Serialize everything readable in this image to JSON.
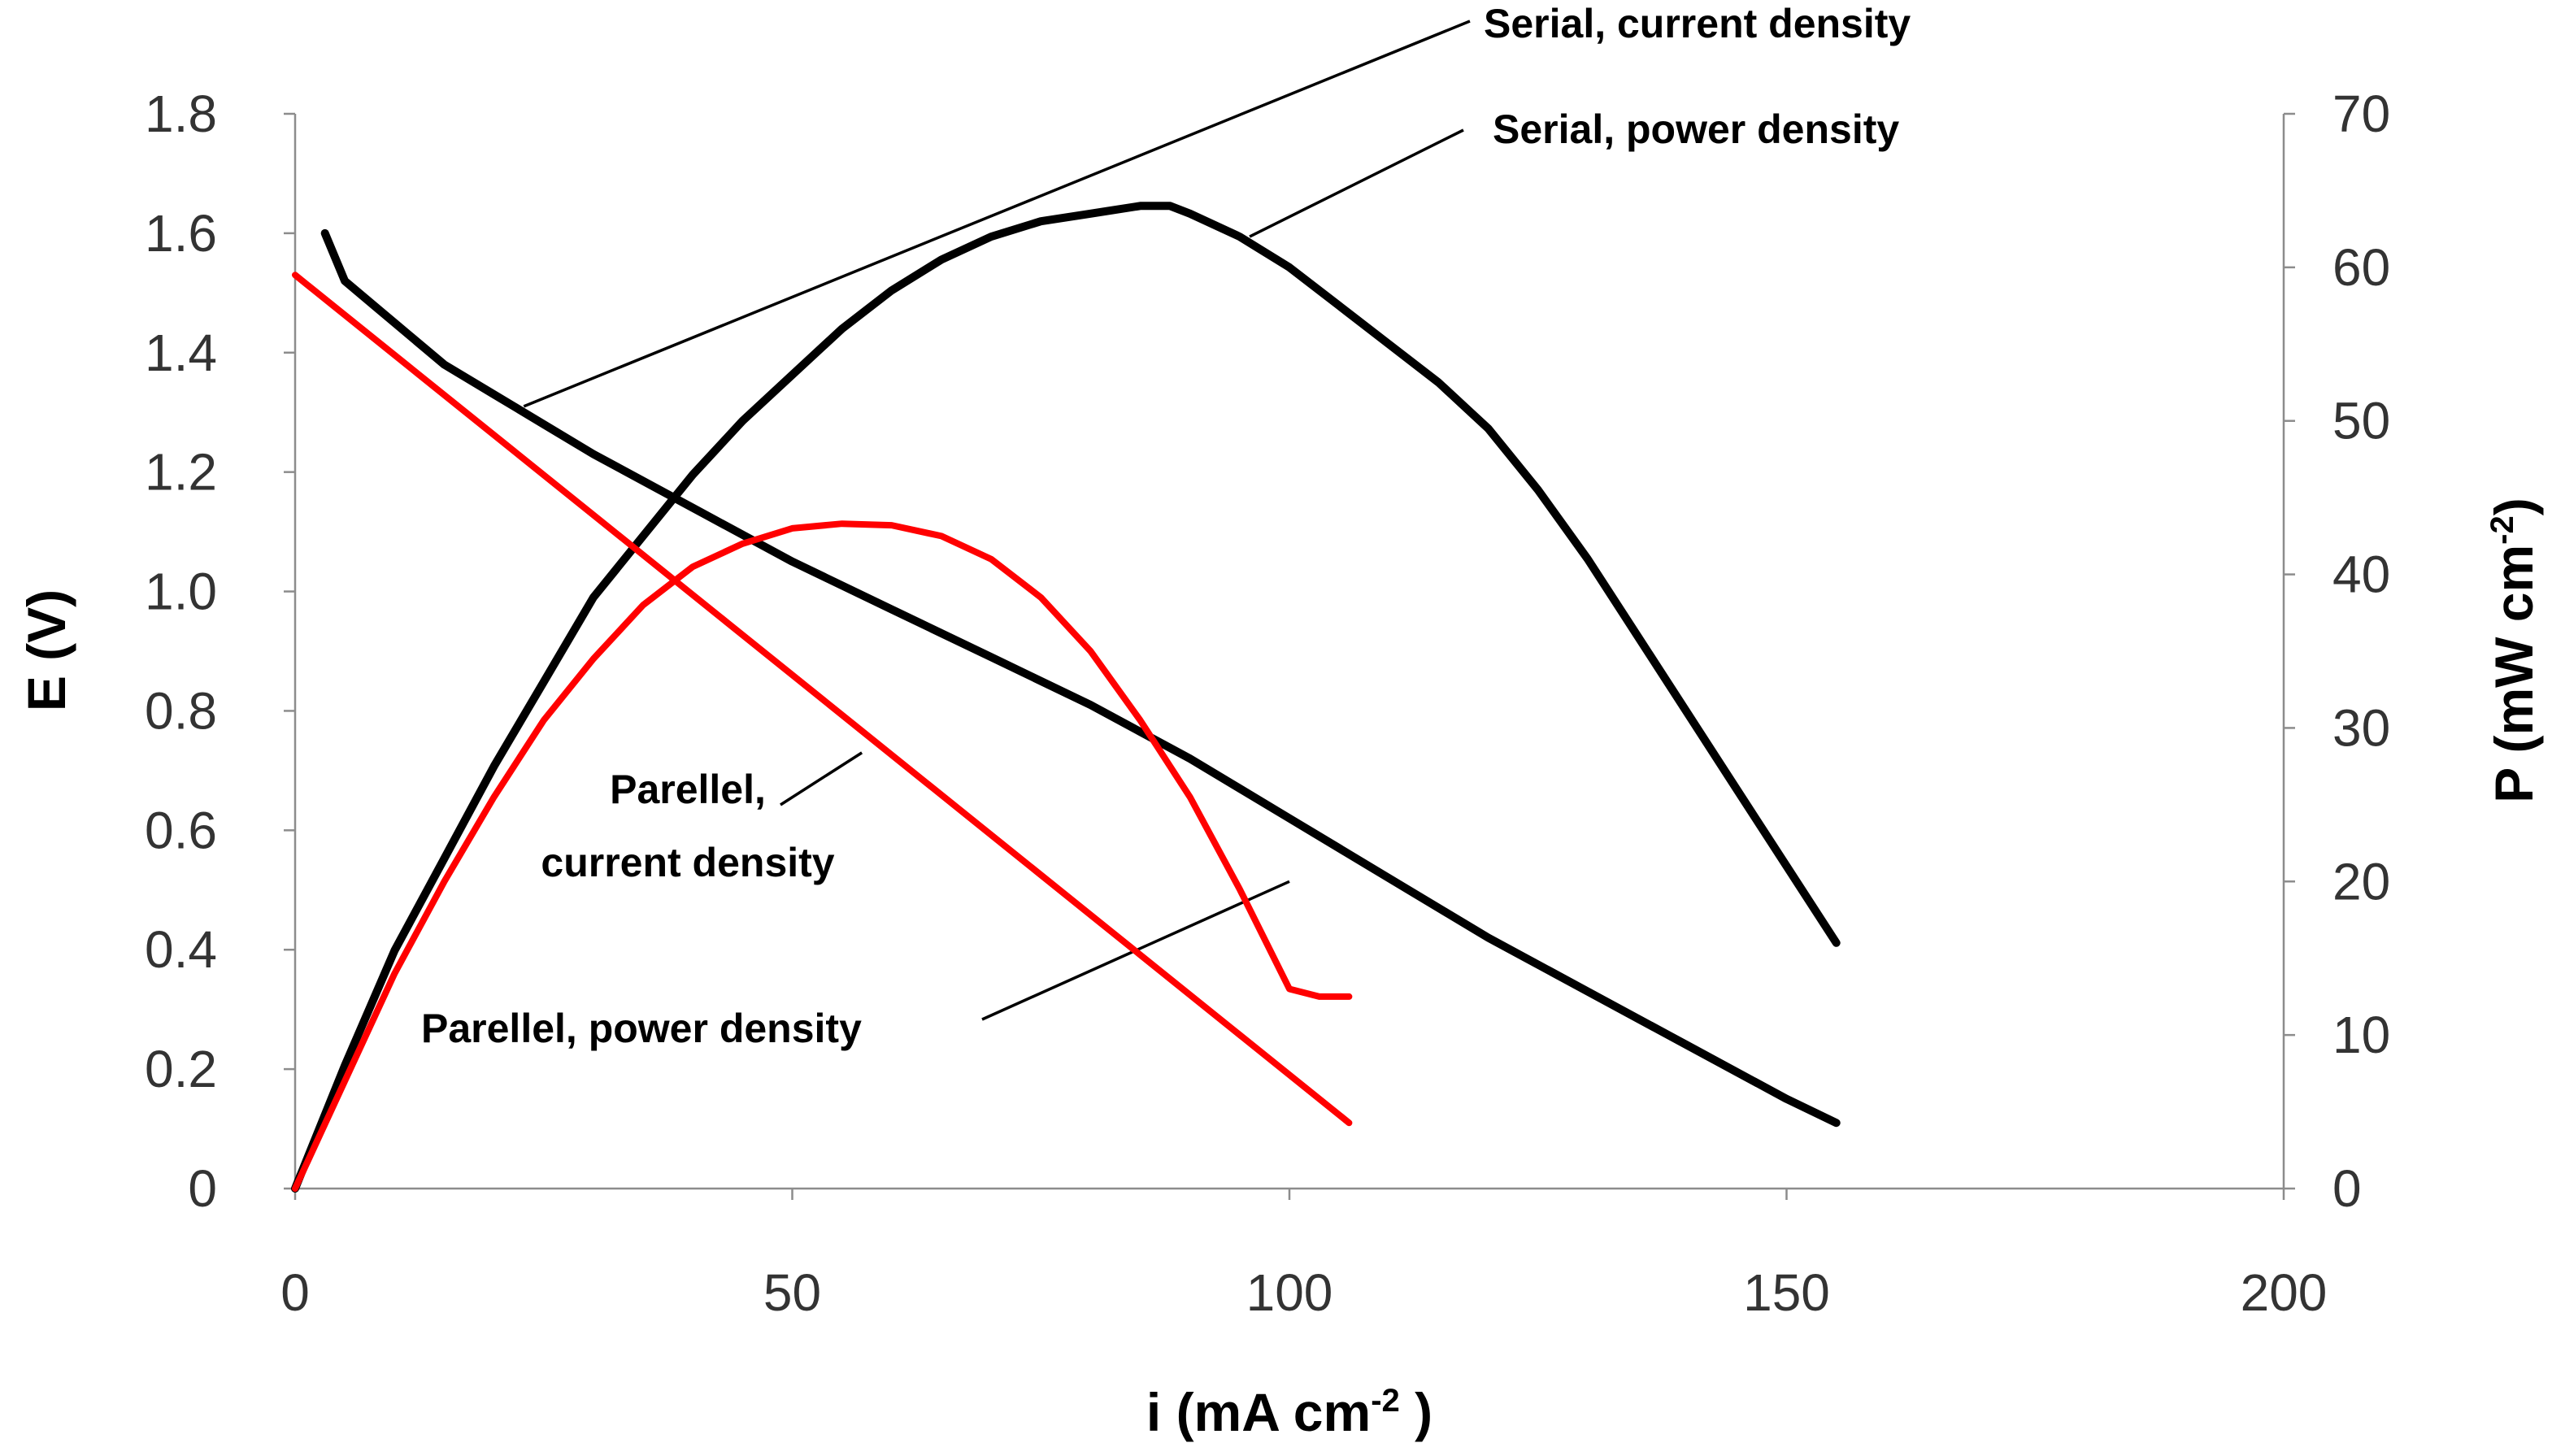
{
  "chart_data": {
    "type": "line",
    "xlabel": "i (mA cm⁻²)",
    "ylabel": "E (V)",
    "y2label": "P (mW cm⁻²)",
    "xlim": [
      0,
      200
    ],
    "ylim": [
      0,
      1.8
    ],
    "y2lim": [
      0,
      70
    ],
    "x_ticks": [
      "0",
      "50",
      "100",
      "150",
      "200"
    ],
    "y_ticks": [
      "0",
      "0.2",
      "0.4",
      "0.6",
      "0.8",
      "1.0",
      "1.2",
      "1.4",
      "1.6",
      "1.8"
    ],
    "y2_ticks": [
      "0",
      "10",
      "20",
      "30",
      "40",
      "50",
      "60",
      "70"
    ],
    "grid": false,
    "series": [
      {
        "name": "Serial, current density",
        "axis": "left",
        "color": "#000000",
        "x": [
          3,
          5,
          10,
          15,
          20,
          25,
          30,
          40,
          50,
          60,
          70,
          80,
          90,
          100,
          110,
          120,
          130,
          140,
          150,
          155
        ],
        "values": [
          1.6,
          1.52,
          1.45,
          1.38,
          1.33,
          1.28,
          1.23,
          1.14,
          1.05,
          0.97,
          0.89,
          0.81,
          0.72,
          0.62,
          0.52,
          0.42,
          0.33,
          0.24,
          0.15,
          0.11
        ]
      },
      {
        "name": "Serial, power density",
        "axis": "right",
        "color": "#000000",
        "x": [
          0,
          5,
          10,
          15,
          20,
          25,
          30,
          35,
          40,
          45,
          50,
          55,
          60,
          65,
          70,
          75,
          80,
          85,
          88,
          90,
          95,
          100,
          105,
          110,
          115,
          120,
          125,
          130,
          135,
          140,
          145,
          150,
          155
        ],
        "values": [
          0,
          8,
          15.5,
          21.5,
          27.5,
          33,
          38.5,
          42.5,
          46.5,
          50,
          53,
          56,
          58.5,
          60.5,
          62,
          63,
          63.5,
          64,
          64,
          63.5,
          62,
          60,
          57.5,
          55,
          52.5,
          49.5,
          45.5,
          41,
          36,
          31,
          26,
          21,
          16
        ]
      },
      {
        "name": "Parellel, current density",
        "axis": "left",
        "color": "#ff0000",
        "x": [
          0,
          106
        ],
        "values": [
          1.53,
          0.11
        ]
      },
      {
        "name": "Parellel, power density",
        "axis": "right",
        "color": "#ff0000",
        "x": [
          0,
          5,
          10,
          15,
          20,
          25,
          30,
          35,
          40,
          45,
          50,
          55,
          60,
          65,
          70,
          75,
          80,
          85,
          90,
          95,
          100,
          103,
          106
        ],
        "values": [
          0,
          7,
          14,
          20,
          25.5,
          30.5,
          34.5,
          38,
          40.5,
          42,
          43,
          43.3,
          43.2,
          42.5,
          41,
          38.5,
          35,
          30.5,
          25.5,
          19.5,
          13,
          12.5,
          12.5
        ]
      }
    ],
    "annotations": [
      {
        "text": "Serial, current density"
      },
      {
        "text": "Serial, power density"
      },
      {
        "text": "Parellel,"
      },
      {
        "text": "current density"
      },
      {
        "text": "Parellel, power density"
      }
    ]
  }
}
